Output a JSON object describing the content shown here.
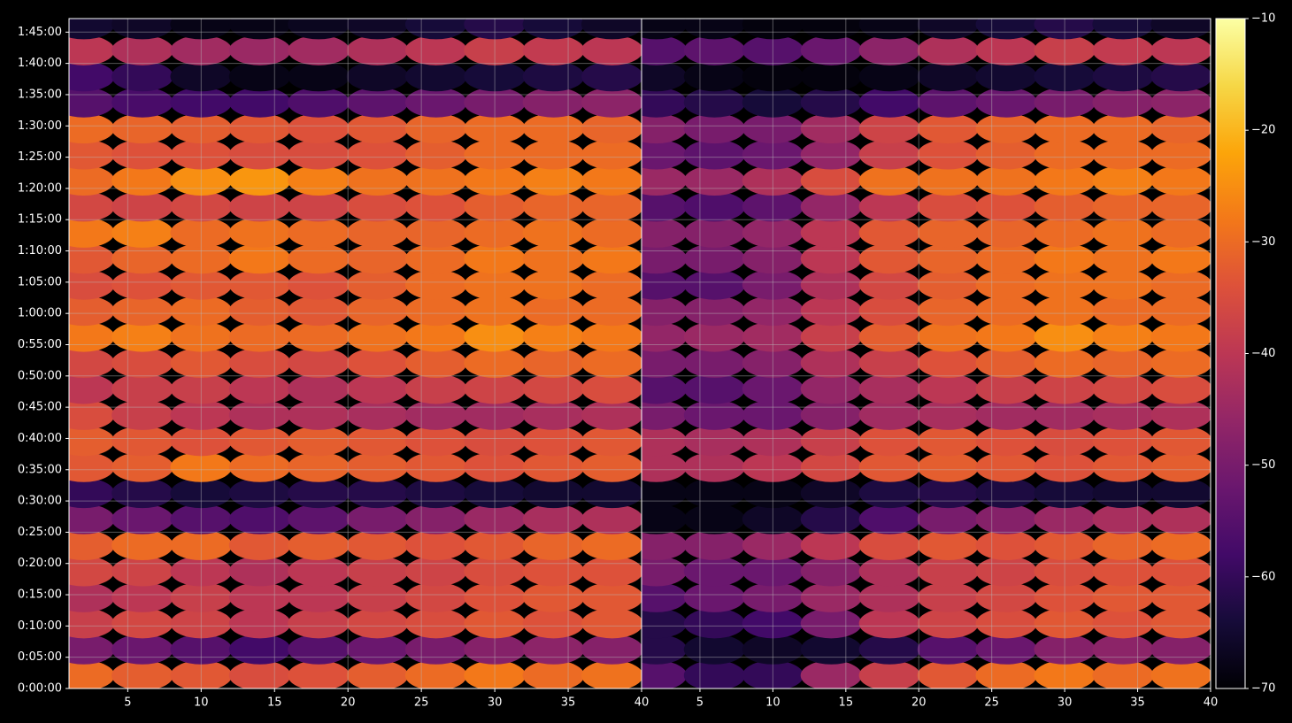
{
  "chart_data": [
    {
      "type": "heatmap",
      "colormap": "inferno",
      "grid": true,
      "x": [
        2,
        6,
        10,
        14,
        18,
        22,
        26,
        30,
        34,
        38
      ],
      "y": [
        125,
        375,
        625,
        875,
        1125,
        1375,
        1625,
        1875,
        2125,
        2375,
        2625,
        2875,
        3125,
        3375,
        3625,
        3875,
        4125,
        4375,
        4625,
        4875,
        5125,
        5375,
        5625,
        5875,
        6125,
        6375
      ],
      "values": [
        [
          -30,
          -32,
          -33,
          -35,
          -34,
          -32,
          -30,
          -28,
          -30,
          -29
        ],
        [
          -50,
          -52,
          -55,
          -58,
          -55,
          -52,
          -50,
          -48,
          -47,
          -48
        ],
        [
          -38,
          -36,
          -37,
          -40,
          -38,
          -36,
          -35,
          -33,
          -34,
          -33
        ],
        [
          -42,
          -40,
          -38,
          -40,
          -40,
          -38,
          -36,
          -34,
          -33,
          -33
        ],
        [
          -36,
          -37,
          -40,
          -42,
          -40,
          -38,
          -37,
          -35,
          -34,
          -34
        ],
        [
          -32,
          -30,
          -30,
          -33,
          -32,
          -33,
          -34,
          -33,
          -31,
          -30
        ],
        [
          -50,
          -52,
          -55,
          -56,
          -54,
          -50,
          -48,
          -45,
          -43,
          -42
        ],
        [
          -60,
          -62,
          -64,
          -63,
          -62,
          -62,
          -63,
          -64,
          -65,
          -65
        ],
        [
          -33,
          -32,
          -28,
          -30,
          -31,
          -32,
          -33,
          -34,
          -33,
          -32
        ],
        [
          -32,
          -33,
          -34,
          -33,
          -32,
          -33,
          -34,
          -35,
          -34,
          -33
        ],
        [
          -35,
          -38,
          -40,
          -42,
          -42,
          -43,
          -44,
          -44,
          -43,
          -42
        ],
        [
          -40,
          -38,
          -38,
          -40,
          -42,
          -40,
          -38,
          -37,
          -36,
          -35
        ],
        [
          -36,
          -35,
          -33,
          -35,
          -36,
          -34,
          -32,
          -30,
          -31,
          -30
        ],
        [
          -28,
          -27,
          -29,
          -30,
          -30,
          -29,
          -28,
          -25,
          -27,
          -28
        ],
        [
          -32,
          -31,
          -30,
          -32,
          -33,
          -31,
          -30,
          -29,
          -30,
          -30
        ],
        [
          -35,
          -34,
          -33,
          -33,
          -34,
          -32,
          -30,
          -29,
          -29,
          -30
        ],
        [
          -33,
          -31,
          -30,
          -28,
          -30,
          -31,
          -30,
          -28,
          -29,
          -28
        ],
        [
          -28,
          -27,
          -30,
          -29,
          -30,
          -31,
          -31,
          -30,
          -29,
          -30
        ],
        [
          -36,
          -37,
          -36,
          -37,
          -37,
          -35,
          -34,
          -32,
          -31,
          -31
        ],
        [
          -30,
          -28,
          -25,
          -24,
          -27,
          -29,
          -29,
          -28,
          -27,
          -28
        ],
        [
          -33,
          -34,
          -34,
          -35,
          -35,
          -34,
          -32,
          -30,
          -30,
          -30
        ],
        [
          -30,
          -31,
          -32,
          -33,
          -34,
          -33,
          -31,
          -30,
          -30,
          -31
        ],
        [
          -55,
          -57,
          -58,
          -58,
          -56,
          -54,
          -52,
          -50,
          -48,
          -47
        ],
        [
          -58,
          -60,
          -66,
          -68,
          -68,
          -66,
          -65,
          -64,
          -63,
          -62
        ],
        [
          -40,
          -42,
          -44,
          -45,
          -44,
          -42,
          -40,
          -38,
          -39,
          -40
        ],
        [
          -65,
          -66,
          -68,
          -68,
          -67,
          -66,
          -64,
          -62,
          -64,
          -66
        ]
      ],
      "xlim": [
        1,
        40
      ],
      "xticks": [
        5,
        10,
        15,
        20,
        25,
        30,
        35,
        40
      ],
      "ylim": [
        0,
        6430
      ],
      "yticks": [
        {
          "value": 0,
          "label": "0:00:00"
        },
        {
          "value": 300,
          "label": "0:05:00"
        },
        {
          "value": 600,
          "label": "0:10:00"
        },
        {
          "value": 900,
          "label": "0:15:00"
        },
        {
          "value": 1200,
          "label": "0:20:00"
        },
        {
          "value": 1500,
          "label": "0:25:00"
        },
        {
          "value": 1800,
          "label": "0:30:00"
        },
        {
          "value": 2100,
          "label": "0:35:00"
        },
        {
          "value": 2400,
          "label": "0:40:00"
        },
        {
          "value": 2700,
          "label": "0:45:00"
        },
        {
          "value": 3000,
          "label": "0:50:00"
        },
        {
          "value": 3300,
          "label": "0:55:00"
        },
        {
          "value": 3600,
          "label": "1:00:00"
        },
        {
          "value": 3900,
          "label": "1:05:00"
        },
        {
          "value": 4200,
          "label": "1:10:00"
        },
        {
          "value": 4500,
          "label": "1:15:00"
        },
        {
          "value": 4800,
          "label": "1:20:00"
        },
        {
          "value": 5100,
          "label": "1:25:00"
        },
        {
          "value": 5400,
          "label": "1:30:00"
        },
        {
          "value": 5700,
          "label": "1:35:00"
        },
        {
          "value": 6000,
          "label": "1:40:00"
        },
        {
          "value": 6300,
          "label": "1:45:00"
        }
      ],
      "colorbar": {
        "lim": [
          -70,
          -10
        ],
        "ticks": [
          {
            "value": -70,
            "label": "−70"
          },
          {
            "value": -60,
            "label": "−60"
          },
          {
            "value": -50,
            "label": "−50"
          },
          {
            "value": -40,
            "label": "−40"
          },
          {
            "value": -30,
            "label": "−30"
          },
          {
            "value": -20,
            "label": "−20"
          },
          {
            "value": -10,
            "label": "−10"
          }
        ]
      }
    },
    {
      "type": "heatmap",
      "colormap": "inferno",
      "grid": true,
      "x": [
        2,
        6,
        10,
        14,
        18,
        22,
        26,
        30,
        34,
        38
      ],
      "y": [
        125,
        375,
        625,
        875,
        1125,
        1375,
        1625,
        1875,
        2125,
        2375,
        2625,
        2875,
        3125,
        3375,
        3625,
        3875,
        4125,
        4375,
        4625,
        4875,
        5125,
        5375,
        5625,
        5875,
        6125,
        6375
      ],
      "values": [
        [
          -55,
          -60,
          -60,
          -45,
          -38,
          -33,
          -30,
          -28,
          -30,
          -29
        ],
        [
          -62,
          -65,
          -66,
          -65,
          -62,
          -55,
          -52,
          -48,
          -47,
          -48
        ],
        [
          -62,
          -60,
          -58,
          -50,
          -40,
          -37,
          -35,
          -33,
          -34,
          -33
        ],
        [
          -55,
          -52,
          -50,
          -45,
          -42,
          -38,
          -36,
          -34,
          -33,
          -33
        ],
        [
          -50,
          -52,
          -52,
          -48,
          -42,
          -38,
          -37,
          -35,
          -34,
          -34
        ],
        [
          -48,
          -48,
          -45,
          -40,
          -35,
          -33,
          -34,
          -33,
          -31,
          -30
        ],
        [
          -68,
          -68,
          -66,
          -62,
          -56,
          -50,
          -48,
          -45,
          -43,
          -42
        ],
        [
          -68,
          -68,
          -68,
          -66,
          -63,
          -62,
          -63,
          -64,
          -65,
          -65
        ],
        [
          -42,
          -42,
          -40,
          -36,
          -33,
          -32,
          -33,
          -34,
          -33,
          -32
        ],
        [
          -42,
          -43,
          -42,
          -38,
          -34,
          -33,
          -34,
          -35,
          -34,
          -33
        ],
        [
          -50,
          -52,
          -52,
          -48,
          -44,
          -43,
          -44,
          -44,
          -43,
          -42
        ],
        [
          -55,
          -55,
          -52,
          -46,
          -43,
          -40,
          -38,
          -37,
          -36,
          -35
        ],
        [
          -50,
          -50,
          -48,
          -42,
          -38,
          -34,
          -32,
          -30,
          -31,
          -30
        ],
        [
          -46,
          -45,
          -44,
          -38,
          -32,
          -29,
          -28,
          -25,
          -27,
          -28
        ],
        [
          -48,
          -48,
          -46,
          -40,
          -35,
          -31,
          -30,
          -29,
          -30,
          -30
        ],
        [
          -55,
          -55,
          -50,
          -42,
          -36,
          -32,
          -30,
          -29,
          -29,
          -30
        ],
        [
          -50,
          -50,
          -48,
          -40,
          -33,
          -31,
          -30,
          -28,
          -29,
          -28
        ],
        [
          -48,
          -48,
          -46,
          -40,
          -33,
          -31,
          -31,
          -30,
          -29,
          -30
        ],
        [
          -55,
          -56,
          -54,
          -46,
          -40,
          -35,
          -34,
          -32,
          -31,
          -31
        ],
        [
          -45,
          -45,
          -42,
          -35,
          -29,
          -29,
          -29,
          -28,
          -27,
          -28
        ],
        [
          -52,
          -54,
          -52,
          -46,
          -38,
          -34,
          -32,
          -30,
          -30,
          -30
        ],
        [
          -48,
          -50,
          -50,
          -44,
          -37,
          -33,
          -31,
          -30,
          -30,
          -31
        ],
        [
          -60,
          -62,
          -64,
          -62,
          -58,
          -54,
          -52,
          -50,
          -48,
          -47
        ],
        [
          -66,
          -68,
          -69,
          -69,
          -68,
          -66,
          -65,
          -64,
          -63,
          -62
        ],
        [
          -55,
          -54,
          -55,
          -52,
          -47,
          -42,
          -40,
          -38,
          -39,
          -40
        ],
        [
          -68,
          -68,
          -69,
          -69,
          -68,
          -66,
          -64,
          -62,
          -64,
          -66
        ]
      ],
      "xlim": [
        1,
        40
      ],
      "xticks": [
        5,
        10,
        15,
        20,
        25,
        30,
        35,
        40
      ],
      "ylim": [
        0,
        6430
      ],
      "yticks": [
        0,
        300,
        600,
        900,
        1200,
        1500,
        1800,
        2100,
        2400,
        2700,
        3000,
        3300,
        3600,
        3900,
        4200,
        4500,
        4800,
        5100,
        5400,
        5700,
        6000,
        6300
      ]
    }
  ]
}
